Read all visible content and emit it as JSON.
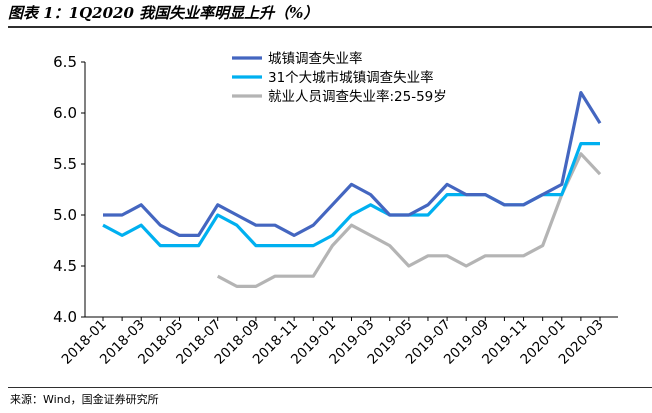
{
  "header": {
    "title": "图表 1：1Q2020 我国失业率明显上升（%）"
  },
  "footer": {
    "source": "来源：Wind，国金证券研究所"
  },
  "colors": {
    "series_1": "#4466c0",
    "series_2": "#00b0f0",
    "series_3": "#b4b4b4",
    "axis": "#000000"
  },
  "chart_data": {
    "type": "line",
    "title": "1Q2020 我国失业率明显上升（%）",
    "xlabel": "",
    "ylabel": "",
    "ylim": [
      4.0,
      6.5
    ],
    "yticks": [
      "4.0",
      "4.5",
      "5.0",
      "5.5",
      "6.0",
      "6.5"
    ],
    "grid": false,
    "legend_position": "top-center",
    "x": [
      "2018-01",
      "2018-02",
      "2018-03",
      "2018-04",
      "2018-05",
      "2018-06",
      "2018-07",
      "2018-08",
      "2018-09",
      "2018-10",
      "2018-11",
      "2018-12",
      "2019-01",
      "2019-02",
      "2019-03",
      "2019-04",
      "2019-05",
      "2019-06",
      "2019-07",
      "2019-08",
      "2019-09",
      "2019-10",
      "2019-11",
      "2019-12",
      "2020-01",
      "2020-02",
      "2020-03"
    ],
    "xticks": [
      "2018-01",
      "2018-03",
      "2018-05",
      "2018-07",
      "2018-09",
      "2018-11",
      "2019-01",
      "2019-03",
      "2019-05",
      "2019-07",
      "2019-09",
      "2019-11",
      "2020-01",
      "2020-03"
    ],
    "series": [
      {
        "name": "城镇调查失业率",
        "values": [
          5.0,
          5.0,
          5.1,
          4.9,
          4.8,
          4.8,
          5.1,
          5.0,
          4.9,
          4.9,
          4.8,
          4.9,
          5.1,
          5.3,
          5.2,
          5.0,
          5.0,
          5.1,
          5.3,
          5.2,
          5.2,
          5.1,
          5.1,
          5.2,
          5.3,
          6.2,
          5.9
        ]
      },
      {
        "name": "31个大城市城镇调查失业率",
        "values": [
          4.9,
          4.8,
          4.9,
          4.7,
          4.7,
          4.7,
          5.0,
          4.9,
          4.7,
          4.7,
          4.7,
          4.7,
          4.8,
          5.0,
          5.1,
          5.0,
          5.0,
          5.0,
          5.2,
          5.2,
          5.2,
          5.1,
          5.1,
          5.2,
          5.2,
          5.7,
          5.7
        ]
      },
      {
        "name": "就业人员调查失业率:25-59岁",
        "values": [
          null,
          null,
          null,
          null,
          null,
          null,
          4.4,
          4.3,
          4.3,
          4.4,
          4.4,
          4.4,
          4.7,
          4.9,
          4.8,
          4.7,
          4.5,
          4.6,
          4.6,
          4.5,
          4.6,
          4.6,
          4.6,
          4.7,
          5.2,
          5.6,
          5.4
        ]
      }
    ]
  }
}
